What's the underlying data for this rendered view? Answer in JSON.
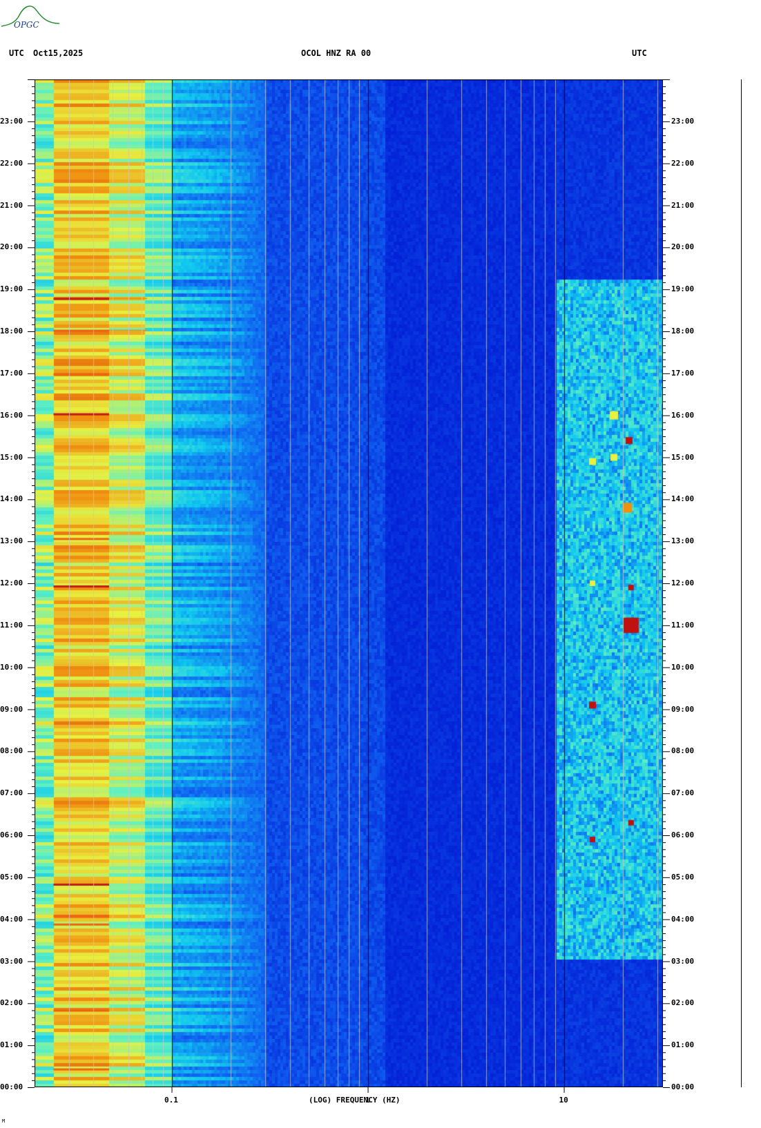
{
  "header": {
    "left_label": "UTC",
    "date": "Oct15,2025",
    "station": "OCOL HNZ RA 00",
    "right_label": "UTC"
  },
  "logo": {
    "text": "OPGC",
    "color": "#2e8b3a"
  },
  "footer_mark": "M",
  "chart_data": {
    "type": "heatmap",
    "title": "OCOL HNZ RA 00",
    "xlabel": "(LOG) FREQUENCY (HZ)",
    "x_scale": "log",
    "xlim": [
      0.02,
      32
    ],
    "x_tick_labels": [
      "0.1",
      "1",
      "10"
    ],
    "x_ticks": [
      0.1,
      1,
      10
    ],
    "ylabel": "UTC",
    "ylim": [
      "00:00",
      "24:00"
    ],
    "y_tick_labels": [
      "00:00",
      "01:00",
      "02:00",
      "03:00",
      "04:00",
      "05:00",
      "06:00",
      "07:00",
      "08:00",
      "09:00",
      "10:00",
      "11:00",
      "12:00",
      "13:00",
      "14:00",
      "15:00",
      "16:00",
      "17:00",
      "18:00",
      "19:00",
      "20:00",
      "21:00",
      "22:00",
      "23:00"
    ],
    "y_tick_hours": [
      0,
      1,
      2,
      3,
      4,
      5,
      6,
      7,
      8,
      9,
      10,
      11,
      12,
      13,
      14,
      15,
      16,
      17,
      18,
      19,
      20,
      21,
      22,
      23
    ],
    "colormap": [
      "#0010d0",
      "#1060f0",
      "#10c8f0",
      "#60f0c0",
      "#e8f040",
      "#f09010",
      "#c01010",
      "#800000"
    ],
    "background_color": "#0a1ed8",
    "features": [
      {
        "name": "low-frequency microseism band",
        "f_min": 0.025,
        "f_max": 0.07,
        "level": "high"
      },
      {
        "name": "high-frequency daytime noise",
        "f_min": 9,
        "f_max": 30,
        "hours": [
          3,
          19
        ],
        "level": "high"
      },
      {
        "name": "strong spike",
        "freq": 22,
        "hour": 11.05,
        "level": "max"
      }
    ]
  }
}
